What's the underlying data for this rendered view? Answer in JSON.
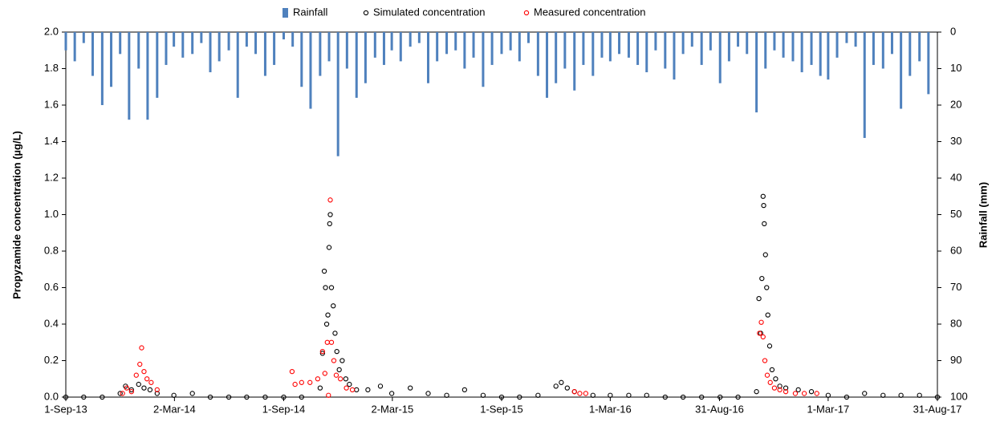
{
  "chart_data": {
    "type": "combo",
    "y_label": "Propyzamide concentration (µg/L)",
    "y2_label": "Rainfall (mm)",
    "ylim": [
      0,
      2
    ],
    "yticks": [
      {
        "value": 0,
        "label": "0.0"
      },
      {
        "value": 0.2,
        "label": "0.2"
      },
      {
        "value": 0.4,
        "label": "0.4"
      },
      {
        "value": 0.6,
        "label": "0.6"
      },
      {
        "value": 0.8,
        "label": "0.8"
      },
      {
        "value": 1,
        "label": "1.0"
      },
      {
        "value": 1.2,
        "label": "1.2"
      },
      {
        "value": 1.4,
        "label": "1.4"
      },
      {
        "value": 1.6,
        "label": "1.6"
      },
      {
        "value": 1.8,
        "label": "1.8"
      },
      {
        "value": 2,
        "label": "2.0"
      }
    ],
    "y2lim": [
      100,
      0
    ],
    "y2ticks": [
      0,
      10,
      20,
      30,
      40,
      50,
      60,
      70,
      80,
      90,
      100
    ],
    "xlim": [
      "2013-09-01",
      "2017-08-31"
    ],
    "xticks": [
      {
        "value": "2013-09-01",
        "label": "1-Sep-13"
      },
      {
        "value": "2014-03-02",
        "label": "2-Mar-14"
      },
      {
        "value": "2014-09-01",
        "label": "1-Sep-14"
      },
      {
        "value": "2015-03-02",
        "label": "2-Mar-15"
      },
      {
        "value": "2015-09-01",
        "label": "1-Sep-15"
      },
      {
        "value": "2016-03-01",
        "label": "1-Mar-16"
      },
      {
        "value": "2016-08-31",
        "label": "31-Aug-16"
      },
      {
        "value": "2017-03-01",
        "label": "1-Mar-17"
      },
      {
        "value": "2017-08-31",
        "label": "31-Aug-17"
      }
    ],
    "series": [
      {
        "name": "Rainfall",
        "type": "bar",
        "axis": "y2",
        "color": "#4f81bd",
        "x": [
          "2013-09-01",
          "2013-09-16",
          "2013-10-01",
          "2013-10-16",
          "2013-11-01",
          "2013-11-16",
          "2013-12-01",
          "2013-12-16",
          "2014-01-01",
          "2014-01-16",
          "2014-02-01",
          "2014-02-16",
          "2014-03-01",
          "2014-03-16",
          "2014-04-01",
          "2014-04-16",
          "2014-05-01",
          "2014-05-16",
          "2014-06-01",
          "2014-06-16",
          "2014-07-01",
          "2014-07-16",
          "2014-08-01",
          "2014-08-16",
          "2014-09-01",
          "2014-09-16",
          "2014-10-01",
          "2014-10-16",
          "2014-11-01",
          "2014-11-16",
          "2014-12-01",
          "2014-12-16",
          "2015-01-01",
          "2015-01-16",
          "2015-02-01",
          "2015-02-16",
          "2015-03-01",
          "2015-03-16",
          "2015-04-01",
          "2015-04-16",
          "2015-05-01",
          "2015-05-16",
          "2015-06-01",
          "2015-06-16",
          "2015-07-01",
          "2015-07-16",
          "2015-08-01",
          "2015-08-16",
          "2015-09-01",
          "2015-09-16",
          "2015-10-01",
          "2015-10-16",
          "2015-11-01",
          "2015-11-16",
          "2015-12-01",
          "2015-12-16",
          "2016-01-01",
          "2016-01-16",
          "2016-02-01",
          "2016-02-16",
          "2016-03-01",
          "2016-03-16",
          "2016-04-01",
          "2016-04-16",
          "2016-05-01",
          "2016-05-16",
          "2016-06-01",
          "2016-06-16",
          "2016-07-01",
          "2016-07-16",
          "2016-08-01",
          "2016-08-16",
          "2016-09-01",
          "2016-09-16",
          "2016-10-01",
          "2016-10-16",
          "2016-11-01",
          "2016-11-16",
          "2016-12-01",
          "2016-12-16",
          "2017-01-01",
          "2017-01-16",
          "2017-02-01",
          "2017-02-16",
          "2017-03-01",
          "2017-03-16",
          "2017-04-01",
          "2017-04-16",
          "2017-05-01",
          "2017-05-16",
          "2017-06-01",
          "2017-06-16",
          "2017-07-01",
          "2017-07-16",
          "2017-08-01",
          "2017-08-16"
        ],
        "values": [
          5,
          8,
          3,
          12,
          20,
          15,
          6,
          24,
          10,
          24,
          18,
          9,
          4,
          7,
          6,
          3,
          11,
          8,
          5,
          18,
          4,
          6,
          12,
          9,
          2,
          4,
          15,
          21,
          12,
          8,
          34,
          10,
          18,
          14,
          7,
          9,
          5,
          8,
          4,
          3,
          14,
          8,
          6,
          5,
          10,
          7,
          15,
          9,
          6,
          5,
          8,
          3,
          12,
          18,
          14,
          10,
          16,
          9,
          12,
          7,
          8,
          6,
          7,
          9,
          11,
          5,
          10,
          13,
          6,
          4,
          9,
          5,
          14,
          8,
          4,
          6,
          22,
          10,
          5,
          7,
          8,
          11,
          9,
          12,
          13,
          7,
          3,
          4,
          29,
          9,
          10,
          6,
          21,
          12,
          8,
          17
        ]
      },
      {
        "name": "Simulated concentration",
        "type": "scatter",
        "color": "#000000",
        "x": [
          "2013-09-01",
          "2013-10-01",
          "2013-11-01",
          "2013-12-01",
          "2013-12-10",
          "2013-12-20",
          "2014-01-01",
          "2014-01-10",
          "2014-01-20",
          "2014-02-01",
          "2014-03-01",
          "2014-04-01",
          "2014-05-01",
          "2014-06-01",
          "2014-07-01",
          "2014-08-01",
          "2014-09-01",
          "2014-10-01",
          "2014-11-01",
          "2014-11-05",
          "2014-11-08",
          "2014-11-10",
          "2014-11-12",
          "2014-11-14",
          "2014-11-16",
          "2014-11-17",
          "2014-11-18",
          "2014-11-20",
          "2014-11-23",
          "2014-11-26",
          "2014-11-29",
          "2014-12-03",
          "2014-12-08",
          "2014-12-14",
          "2014-12-20",
          "2015-01-01",
          "2015-01-20",
          "2015-02-10",
          "2015-03-01",
          "2015-04-01",
          "2015-05-01",
          "2015-06-01",
          "2015-07-01",
          "2015-08-01",
          "2015-09-01",
          "2015-10-01",
          "2015-11-01",
          "2015-12-01",
          "2015-12-10",
          "2015-12-20",
          "2016-01-01",
          "2016-02-01",
          "2016-03-01",
          "2016-04-01",
          "2016-05-01",
          "2016-06-01",
          "2016-07-01",
          "2016-08-01",
          "2016-09-01",
          "2016-10-01",
          "2016-11-01",
          "2016-11-05",
          "2016-11-08",
          "2016-11-10",
          "2016-11-12",
          "2016-11-13",
          "2016-11-14",
          "2016-11-16",
          "2016-11-18",
          "2016-11-20",
          "2016-11-23",
          "2016-11-27",
          "2016-12-03",
          "2016-12-10",
          "2016-12-20",
          "2017-01-10",
          "2017-02-01",
          "2017-03-01",
          "2017-04-01",
          "2017-05-01",
          "2017-06-01",
          "2017-07-01",
          "2017-08-01",
          "2017-08-31"
        ],
        "values": [
          0,
          0,
          0,
          0.02,
          0.06,
          0.04,
          0.07,
          0.05,
          0.04,
          0.02,
          0.01,
          0.02,
          0,
          0,
          0,
          0,
          0,
          0,
          0.05,
          0.24,
          0.69,
          0.6,
          0.4,
          0.45,
          0.82,
          0.95,
          1,
          0.6,
          0.5,
          0.35,
          0.25,
          0.15,
          0.2,
          0.1,
          0.07,
          0.04,
          0.04,
          0.06,
          0.02,
          0.05,
          0.02,
          0.01,
          0.04,
          0.01,
          0,
          0,
          0.01,
          0.06,
          0.08,
          0.05,
          0.03,
          0.01,
          0.01,
          0.01,
          0.01,
          0,
          0,
          0,
          0,
          0,
          0.03,
          0.54,
          0.35,
          0.65,
          1.1,
          1.05,
          0.95,
          0.78,
          0.6,
          0.45,
          0.28,
          0.15,
          0.1,
          0.06,
          0.05,
          0.04,
          0.03,
          0.01,
          0,
          0.02,
          0.01,
          0.01,
          0.01,
          0
        ]
      },
      {
        "name": "Measured concentration",
        "type": "scatter",
        "color": "#ff0000",
        "x": [
          "2013-12-05",
          "2013-12-12",
          "2013-12-20",
          "2013-12-28",
          "2014-01-03",
          "2014-01-06",
          "2014-01-10",
          "2014-01-15",
          "2014-01-22",
          "2014-02-01",
          "2014-09-15",
          "2014-09-20",
          "2014-10-01",
          "2014-10-15",
          "2014-10-28",
          "2014-11-05",
          "2014-11-09",
          "2014-11-13",
          "2014-11-15",
          "2014-11-18",
          "2014-11-20",
          "2014-11-24",
          "2014-11-28",
          "2014-12-05",
          "2014-12-15",
          "2014-12-25",
          "2016-01-01",
          "2016-01-10",
          "2016-01-20",
          "2016-11-06",
          "2016-11-09",
          "2016-11-12",
          "2016-11-15",
          "2016-11-19",
          "2016-11-24",
          "2016-12-01",
          "2016-12-10",
          "2016-12-20",
          "2017-01-05",
          "2017-01-20",
          "2017-02-10"
        ],
        "values": [
          0.02,
          0.05,
          0.03,
          0.12,
          0.18,
          0.27,
          0.14,
          0.1,
          0.08,
          0.04,
          0.14,
          0.07,
          0.08,
          0.08,
          0.1,
          0.25,
          0.13,
          0.3,
          0.01,
          1.08,
          0.3,
          0.2,
          0.12,
          0.1,
          0.05,
          0.04,
          0.03,
          0.02,
          0.02,
          0.35,
          0.41,
          0.33,
          0.2,
          0.12,
          0.08,
          0.05,
          0.04,
          0.03,
          0.02,
          0.02,
          0.02
        ]
      }
    ]
  }
}
